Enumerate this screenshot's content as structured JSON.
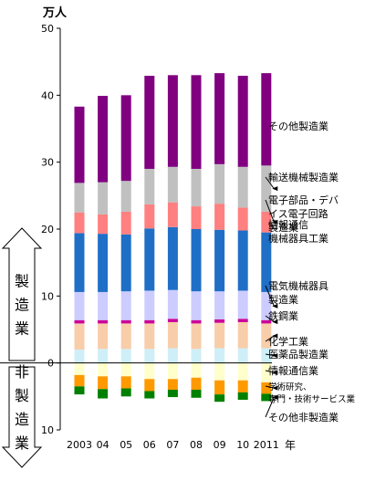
{
  "chart_data": {
    "type": "bar",
    "stacked": true,
    "unit_label": "万人",
    "x_suffix": "年",
    "categories": [
      "2003",
      "04",
      "05",
      "06",
      "07",
      "08",
      "09",
      "10",
      "2011"
    ],
    "ylim": [
      -10,
      50
    ],
    "yticks": [
      {
        "value": 50,
        "label": "50"
      },
      {
        "value": 40,
        "label": "40"
      },
      {
        "value": 30,
        "label": "30"
      },
      {
        "value": 20,
        "label": "20"
      },
      {
        "value": 10,
        "label": "10"
      },
      {
        "value": 0,
        "label": "0"
      },
      {
        "value": -10,
        "label": "10"
      }
    ],
    "grid": false,
    "series": [
      {
        "name": "医薬品製造業",
        "group": "manufacturing",
        "color": "#cfeff8",
        "values": [
          2.0,
          2.1,
          2.1,
          2.1,
          2.2,
          2.1,
          2.2,
          2.2,
          2.2
        ]
      },
      {
        "name": "化学工業",
        "group": "manufacturing",
        "color": "#f8cda9",
        "values": [
          3.9,
          3.8,
          3.8,
          3.8,
          3.9,
          3.8,
          3.8,
          3.9,
          3.7
        ]
      },
      {
        "name": "鉄鋼業",
        "group": "manufacturing",
        "color": "#cc0099",
        "values": [
          0.5,
          0.5,
          0.5,
          0.5,
          0.5,
          0.5,
          0.5,
          0.5,
          0.5
        ]
      },
      {
        "name": "電気機械器具製造業",
        "group": "manufacturing",
        "color": "#ccccff",
        "values": [
          4.2,
          4.2,
          4.3,
          4.4,
          4.3,
          4.3,
          4.2,
          4.2,
          4.2
        ]
      },
      {
        "name": "情報通信機械器具工業",
        "group": "manufacturing",
        "color": "#1f6fc7",
        "values": [
          8.8,
          8.7,
          8.5,
          9.3,
          9.4,
          9.3,
          9.2,
          9.0,
          8.9
        ]
      },
      {
        "name": "電子部品・デバイス電子回路製造業",
        "group": "manufacturing",
        "color": "#ff8080",
        "values": [
          3.1,
          2.9,
          3.4,
          3.6,
          3.7,
          3.4,
          3.9,
          3.4,
          3.1
        ]
      },
      {
        "name": "輸送機械製造業",
        "group": "manufacturing",
        "color": "#c0c0c0",
        "values": [
          4.4,
          4.8,
          4.6,
          5.3,
          5.3,
          5.6,
          5.9,
          6.1,
          6.9
        ]
      },
      {
        "name": "その他製造業",
        "group": "manufacturing",
        "color": "#800080",
        "values": [
          11.4,
          12.9,
          12.8,
          13.9,
          13.7,
          14.0,
          13.6,
          13.6,
          13.8
        ]
      },
      {
        "name": "情報通信業",
        "group": "non-manufacturing",
        "color": "#ffffcc",
        "values": [
          1.8,
          2.0,
          2.0,
          2.4,
          2.4,
          2.2,
          2.6,
          2.6,
          2.9
        ]
      },
      {
        "name": "学術研究、専門・技術サービス業",
        "group": "non-manufacturing",
        "color": "#ff9900",
        "values": [
          1.7,
          1.9,
          1.8,
          1.8,
          1.6,
          1.8,
          2.1,
          1.8,
          1.7
        ]
      },
      {
        "name": "その他非製造業",
        "group": "non-manufacturing",
        "color": "#008000",
        "values": [
          1.2,
          1.4,
          1.2,
          1.1,
          1.1,
          1.2,
          1.1,
          1.1,
          1.1
        ]
      }
    ],
    "legend_labels": [
      {
        "text": "その他製造業",
        "series": "その他製造業",
        "arrow": false
      },
      {
        "text": "輸送機械製造業",
        "series": "輸送機械製造業",
        "arrow": true
      },
      {
        "lines": [
          "電子部品・デバ",
          "イス電子回路",
          "製造業"
        ],
        "series": "電子部品・デバイス電子回路製造業",
        "arrow": true
      },
      {
        "lines": [
          "情報通信",
          "機械器具工業"
        ],
        "series": "情報通信機械器具工業",
        "arrow": false
      },
      {
        "lines": [
          "電気機械器具",
          "製造業"
        ],
        "series": "電気機械器具製造業",
        "arrow": true
      },
      {
        "text": "鉄鋼業",
        "series": "鉄鋼業",
        "arrow": true
      },
      {
        "text": "化学工業",
        "series": "化学工業",
        "arrow": true
      },
      {
        "text": "医薬品製造業",
        "series": "医薬品製造業",
        "arrow": true
      },
      {
        "text": "情報通信業",
        "series": "情報通信業",
        "arrow": true
      },
      {
        "lines": [
          "学術研究、",
          "専門・技術サービス業"
        ],
        "series": "学術研究、専門・技術サービス業",
        "arrow": true
      },
      {
        "text": "その他非製造業",
        "series": "その他非製造業",
        "arrow": true
      }
    ],
    "side_labels": {
      "up": "製造業",
      "down": "非製造業"
    }
  }
}
